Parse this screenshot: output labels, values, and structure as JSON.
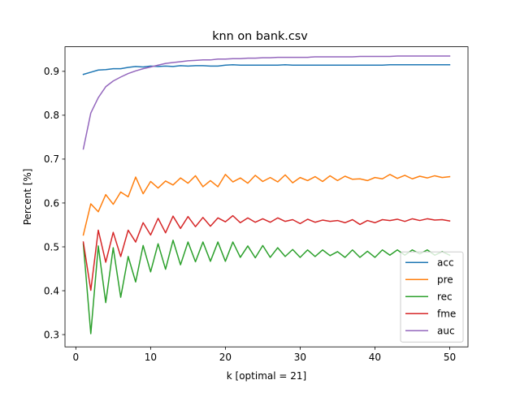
{
  "chart_data": {
    "type": "line",
    "title": "knn on bank.csv",
    "xlabel": "k [optimal = 21]",
    "ylabel": "Percent [%]",
    "xlim": [
      -1.45,
      52.45
    ],
    "ylim": [
      0.272,
      0.956
    ],
    "xticks": [
      0,
      10,
      20,
      30,
      40,
      50
    ],
    "yticks": [
      0.3,
      0.4,
      0.5,
      0.6,
      0.7,
      0.8,
      0.9
    ],
    "legend_position": "lower-right",
    "grid": false,
    "x": [
      1,
      2,
      3,
      4,
      5,
      6,
      7,
      8,
      9,
      10,
      11,
      12,
      13,
      14,
      15,
      16,
      17,
      18,
      19,
      20,
      21,
      22,
      23,
      24,
      25,
      26,
      27,
      28,
      29,
      30,
      31,
      32,
      33,
      34,
      35,
      36,
      37,
      38,
      39,
      40,
      41,
      42,
      43,
      44,
      45,
      46,
      47,
      48,
      49,
      50
    ],
    "series": [
      {
        "name": "acc",
        "color": "#1f77b4",
        "values": [
          0.893,
          0.898,
          0.903,
          0.904,
          0.906,
          0.906,
          0.909,
          0.911,
          0.91,
          0.912,
          0.911,
          0.912,
          0.911,
          0.913,
          0.912,
          0.913,
          0.913,
          0.912,
          0.912,
          0.914,
          0.915,
          0.914,
          0.914,
          0.914,
          0.914,
          0.914,
          0.914,
          0.915,
          0.914,
          0.914,
          0.914,
          0.914,
          0.914,
          0.914,
          0.914,
          0.914,
          0.914,
          0.914,
          0.914,
          0.914,
          0.914,
          0.915,
          0.915,
          0.915,
          0.915,
          0.915,
          0.915,
          0.915,
          0.915,
          0.915
        ]
      },
      {
        "name": "pre",
        "color": "#ff7f0e",
        "values": [
          0.527,
          0.598,
          0.58,
          0.619,
          0.597,
          0.625,
          0.614,
          0.659,
          0.621,
          0.649,
          0.634,
          0.65,
          0.641,
          0.657,
          0.645,
          0.662,
          0.637,
          0.651,
          0.637,
          0.665,
          0.648,
          0.657,
          0.645,
          0.663,
          0.649,
          0.658,
          0.648,
          0.664,
          0.646,
          0.658,
          0.651,
          0.66,
          0.649,
          0.662,
          0.651,
          0.661,
          0.654,
          0.655,
          0.651,
          0.658,
          0.655,
          0.665,
          0.656,
          0.663,
          0.655,
          0.661,
          0.657,
          0.662,
          0.658,
          0.66
        ]
      },
      {
        "name": "rec",
        "color": "#2ca02c",
        "values": [
          0.507,
          0.302,
          0.502,
          0.373,
          0.498,
          0.385,
          0.478,
          0.42,
          0.503,
          0.443,
          0.507,
          0.449,
          0.515,
          0.459,
          0.511,
          0.466,
          0.511,
          0.467,
          0.511,
          0.467,
          0.511,
          0.476,
          0.502,
          0.475,
          0.503,
          0.476,
          0.498,
          0.478,
          0.494,
          0.476,
          0.493,
          0.478,
          0.493,
          0.48,
          0.489,
          0.476,
          0.493,
          0.476,
          0.49,
          0.476,
          0.493,
          0.481,
          0.493,
          0.481,
          0.493,
          0.484,
          0.493,
          0.481,
          0.489,
          0.481
        ]
      },
      {
        "name": "fme",
        "color": "#d62728",
        "values": [
          0.511,
          0.401,
          0.538,
          0.465,
          0.533,
          0.478,
          0.538,
          0.511,
          0.555,
          0.527,
          0.565,
          0.532,
          0.57,
          0.542,
          0.569,
          0.546,
          0.567,
          0.547,
          0.566,
          0.557,
          0.571,
          0.555,
          0.566,
          0.556,
          0.564,
          0.556,
          0.566,
          0.558,
          0.562,
          0.553,
          0.563,
          0.556,
          0.561,
          0.558,
          0.56,
          0.555,
          0.562,
          0.551,
          0.56,
          0.555,
          0.562,
          0.56,
          0.563,
          0.558,
          0.564,
          0.56,
          0.564,
          0.561,
          0.562,
          0.559
        ]
      },
      {
        "name": "auc",
        "color": "#9467bd",
        "values": [
          0.723,
          0.805,
          0.84,
          0.865,
          0.878,
          0.887,
          0.895,
          0.901,
          0.906,
          0.91,
          0.914,
          0.918,
          0.92,
          0.922,
          0.924,
          0.925,
          0.926,
          0.926,
          0.928,
          0.928,
          0.929,
          0.929,
          0.93,
          0.93,
          0.931,
          0.931,
          0.932,
          0.932,
          0.932,
          0.932,
          0.932,
          0.933,
          0.933,
          0.933,
          0.933,
          0.933,
          0.933,
          0.934,
          0.934,
          0.934,
          0.934,
          0.934,
          0.935,
          0.935,
          0.935,
          0.935,
          0.935,
          0.935,
          0.935,
          0.935
        ]
      }
    ]
  }
}
